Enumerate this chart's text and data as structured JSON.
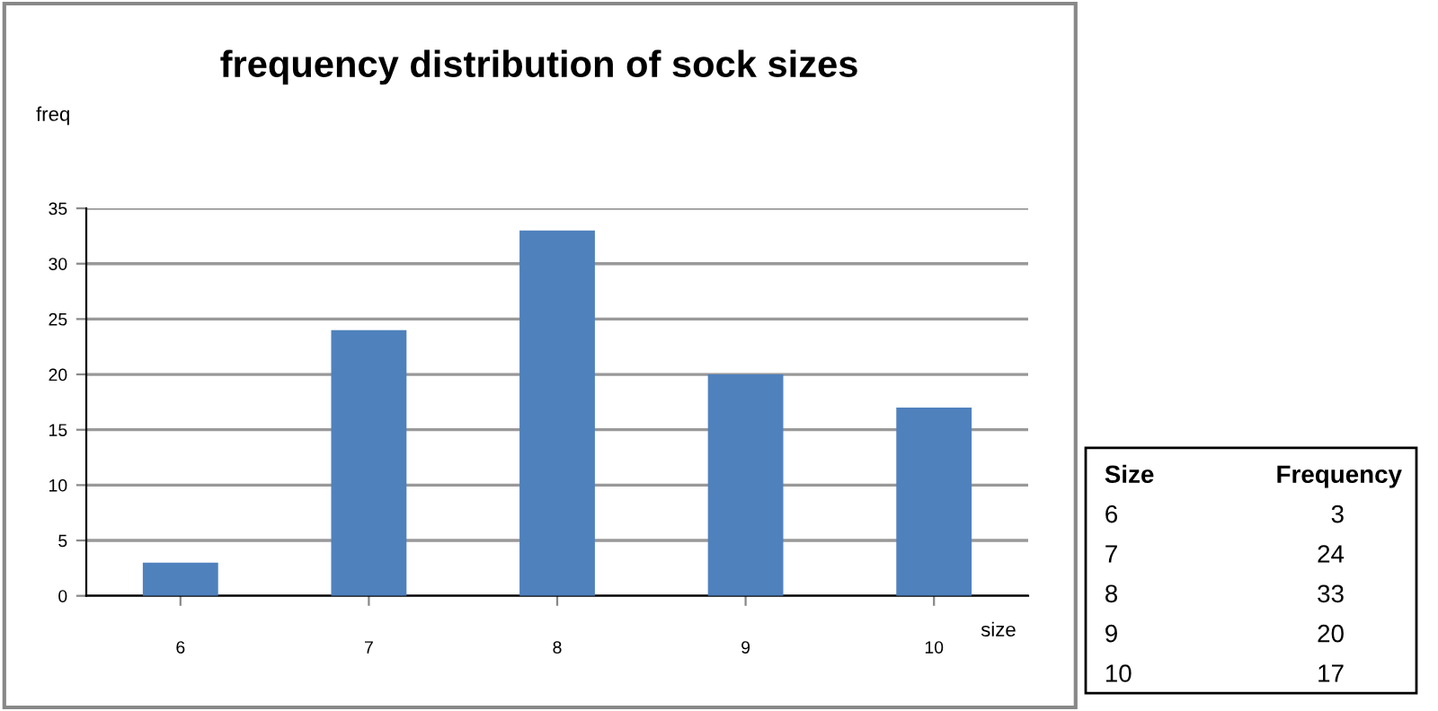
{
  "chart_data": {
    "type": "bar",
    "title": "frequency distribution of sock sizes",
    "ylabel": "freq",
    "xlabel": "size",
    "categories": [
      "6",
      "7",
      "8",
      "9",
      "10"
    ],
    "values": [
      3,
      24,
      33,
      20,
      17
    ],
    "color": "#4f81bd",
    "ylim": [
      0,
      35
    ],
    "yticks": [
      0,
      5,
      10,
      15,
      20,
      25,
      30,
      35
    ],
    "grid": "y",
    "annotations": [
      "Size",
      "Frequency",
      "6",
      "3",
      "7",
      "24",
      "8",
      "33",
      "9",
      "20",
      "10",
      "17"
    ]
  }
}
